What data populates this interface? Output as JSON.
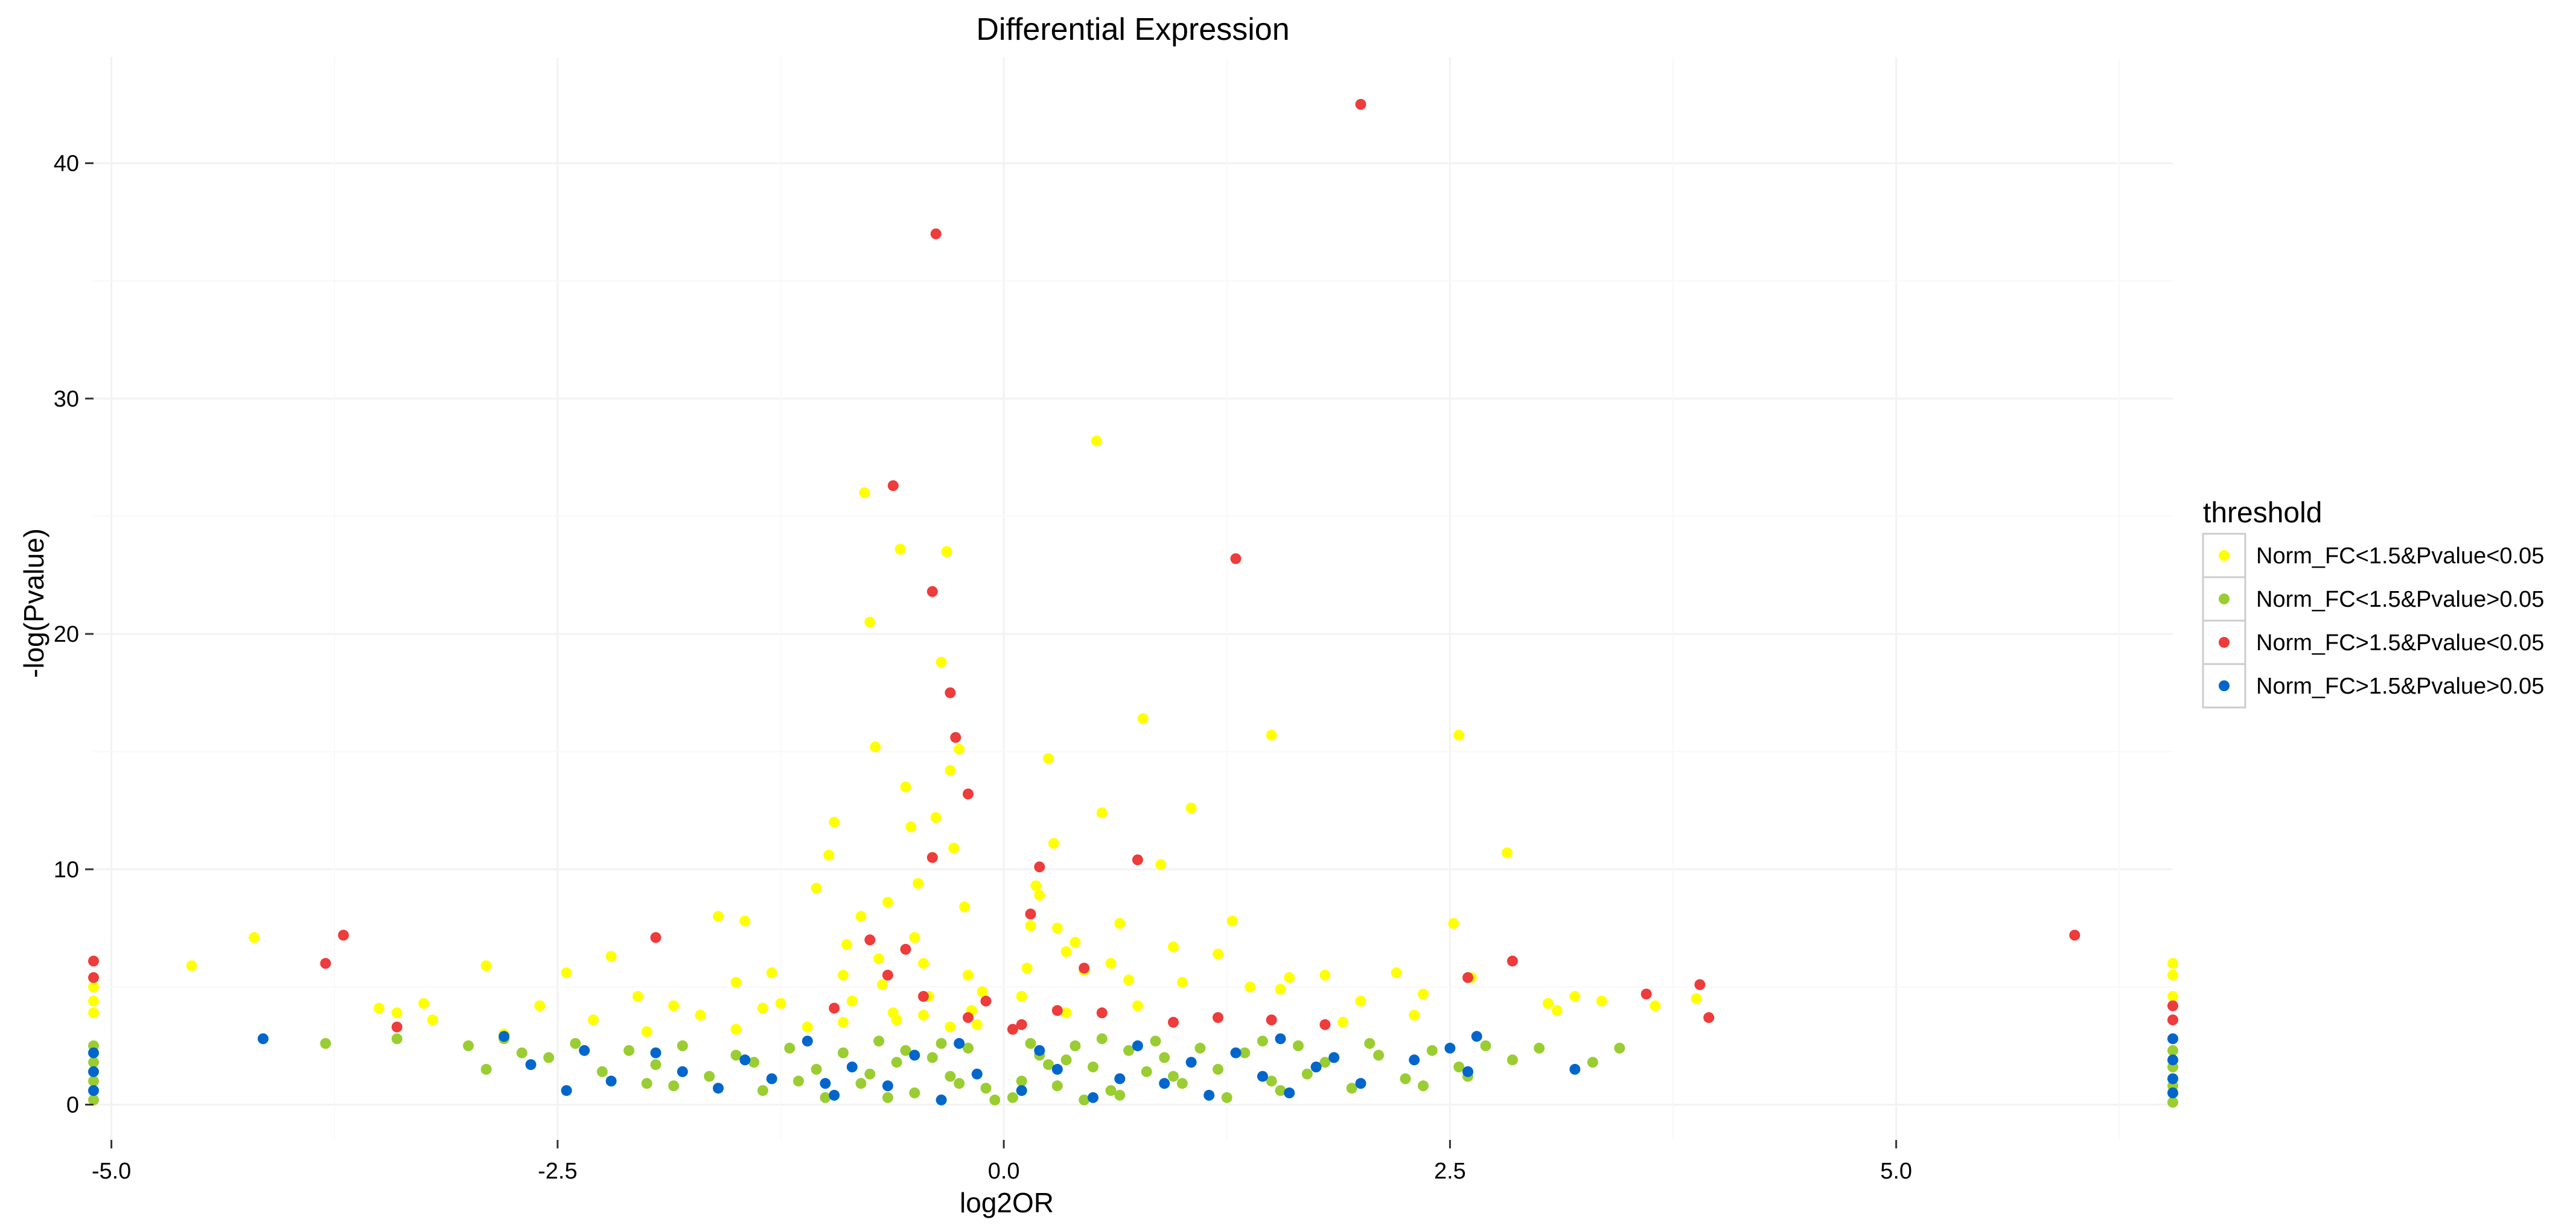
{
  "chart_data": {
    "type": "scatter",
    "title": "Differential Expression",
    "xlabel": "log2OR",
    "ylabel": "-log(Pvalue)",
    "xlim": [
      -5.1,
      6.55
    ],
    "ylim": [
      -1.5,
      44.5
    ],
    "x_ticks": [
      -5.0,
      -2.5,
      0.0,
      2.5,
      5.0
    ],
    "x_tick_labels": [
      "-5.0",
      "-2.5",
      "0.0",
      "2.5",
      "5.0"
    ],
    "y_ticks": [
      0,
      10,
      20,
      30,
      40
    ],
    "y_tick_labels": [
      "0",
      "10",
      "20",
      "30",
      "40"
    ],
    "grid": true,
    "legend": {
      "title": "threshold",
      "placement": "right",
      "entries": [
        {
          "label": "Norm_FC<1.5&Pvalue<0.05",
          "color": "#FFFF00"
        },
        {
          "label": "Norm_FC<1.5&Pvalue>0.05",
          "color": "#9ACD32"
        },
        {
          "label": "Norm_FC>1.5&Pvalue<0.05",
          "color": "#EE3B3B"
        },
        {
          "label": "Norm_FC>1.5&Pvalue>0.05",
          "color": "#0066CC"
        }
      ]
    },
    "series": [
      {
        "name": "Norm_FC<1.5&Pvalue<0.05",
        "color": "#FFFF00",
        "points": [
          [
            -4.55,
            5.9
          ],
          [
            -4.2,
            7.1
          ],
          [
            -3.5,
            4.1
          ],
          [
            -3.4,
            3.9
          ],
          [
            -3.25,
            4.3
          ],
          [
            -3.2,
            3.6
          ],
          [
            -2.9,
            5.9
          ],
          [
            -2.6,
            4.2
          ],
          [
            -2.45,
            5.6
          ],
          [
            -2.2,
            6.3
          ],
          [
            -2.05,
            4.6
          ],
          [
            -1.85,
            4.2
          ],
          [
            -1.6,
            8.0
          ],
          [
            -1.5,
            5.2
          ],
          [
            -1.45,
            7.8
          ],
          [
            -1.35,
            4.1
          ],
          [
            -1.3,
            5.6
          ],
          [
            -1.25,
            4.3
          ],
          [
            -1.05,
            9.2
          ],
          [
            -0.98,
            10.6
          ],
          [
            -0.95,
            12.0
          ],
          [
            -0.9,
            5.5
          ],
          [
            -0.88,
            6.8
          ],
          [
            -0.85,
            4.4
          ],
          [
            -0.8,
            8.0
          ],
          [
            -0.78,
            26.0
          ],
          [
            -0.75,
            20.5
          ],
          [
            -0.72,
            15.2
          ],
          [
            -0.7,
            6.2
          ],
          [
            -0.68,
            5.1
          ],
          [
            -0.65,
            8.6
          ],
          [
            -0.62,
            3.9
          ],
          [
            -0.58,
            23.6
          ],
          [
            -0.55,
            13.5
          ],
          [
            -0.52,
            11.8
          ],
          [
            -0.5,
            7.1
          ],
          [
            -0.48,
            9.4
          ],
          [
            -0.45,
            6.0
          ],
          [
            -0.42,
            4.6
          ],
          [
            -0.4,
            10.5
          ],
          [
            -0.38,
            12.2
          ],
          [
            -0.35,
            18.8
          ],
          [
            -0.32,
            23.5
          ],
          [
            -0.3,
            14.2
          ],
          [
            -0.28,
            10.9
          ],
          [
            -0.25,
            15.1
          ],
          [
            -0.22,
            8.4
          ],
          [
            -0.2,
            5.5
          ],
          [
            -0.18,
            4.0
          ],
          [
            -0.15,
            3.4
          ],
          [
            -0.12,
            4.8
          ],
          [
            -0.9,
            3.5
          ],
          [
            -1.1,
            3.3
          ],
          [
            -0.6,
            3.6
          ],
          [
            -0.3,
            3.3
          ],
          [
            0.1,
            4.6
          ],
          [
            0.13,
            5.8
          ],
          [
            0.15,
            7.6
          ],
          [
            0.18,
            9.3
          ],
          [
            0.2,
            8.9
          ],
          [
            0.25,
            14.7
          ],
          [
            0.28,
            11.1
          ],
          [
            0.3,
            7.5
          ],
          [
            0.35,
            6.5
          ],
          [
            0.4,
            6.9
          ],
          [
            0.45,
            5.7
          ],
          [
            0.52,
            28.2
          ],
          [
            0.55,
            12.4
          ],
          [
            0.6,
            6.0
          ],
          [
            0.65,
            7.7
          ],
          [
            0.7,
            5.3
          ],
          [
            0.78,
            16.4
          ],
          [
            0.88,
            10.2
          ],
          [
            0.95,
            6.7
          ],
          [
            1.05,
            12.6
          ],
          [
            1.2,
            6.4
          ],
          [
            1.28,
            7.8
          ],
          [
            1.38,
            5.0
          ],
          [
            1.5,
            15.7
          ],
          [
            1.6,
            5.4
          ],
          [
            1.8,
            5.5
          ],
          [
            2.0,
            4.4
          ],
          [
            2.2,
            5.6
          ],
          [
            2.35,
            4.7
          ],
          [
            2.52,
            7.7
          ],
          [
            2.55,
            15.7
          ],
          [
            2.62,
            5.4
          ],
          [
            2.82,
            10.7
          ],
          [
            3.05,
            4.3
          ],
          [
            3.2,
            4.6
          ],
          [
            3.35,
            4.4
          ],
          [
            3.65,
            4.2
          ],
          [
            3.88,
            4.5
          ],
          [
            3.1,
            4.0
          ],
          [
            1.55,
            4.9
          ],
          [
            1.0,
            5.2
          ],
          [
            -1.5,
            3.2
          ],
          [
            -2.0,
            3.1
          ],
          [
            -2.8,
            3.0
          ],
          [
            -0.45,
            3.8
          ],
          [
            0.35,
            3.9
          ],
          [
            0.75,
            4.2
          ],
          [
            -5.1,
            5.0
          ],
          [
            -5.1,
            4.4
          ],
          [
            -5.1,
            3.9
          ],
          [
            6.55,
            5.5
          ],
          [
            6.55,
            4.6
          ],
          [
            6.55,
            6.0
          ],
          [
            -1.7,
            3.8
          ],
          [
            -2.3,
            3.6
          ],
          [
            1.9,
            3.5
          ],
          [
            2.3,
            3.8
          ]
        ]
      },
      {
        "name": "Norm_FC<1.5&Pvalue>0.05",
        "color": "#9ACD32",
        "points": [
          [
            -3.8,
            2.6
          ],
          [
            -3.4,
            2.8
          ],
          [
            -3.0,
            2.5
          ],
          [
            -2.8,
            2.8
          ],
          [
            -2.7,
            2.2
          ],
          [
            -2.55,
            2.0
          ],
          [
            -2.4,
            2.6
          ],
          [
            -2.25,
            1.4
          ],
          [
            -2.1,
            2.3
          ],
          [
            -1.95,
            1.7
          ],
          [
            -1.8,
            2.5
          ],
          [
            -1.65,
            1.2
          ],
          [
            -1.5,
            2.1
          ],
          [
            -1.35,
            0.6
          ],
          [
            -1.2,
            2.4
          ],
          [
            -1.05,
            1.5
          ],
          [
            -0.9,
            2.2
          ],
          [
            -0.8,
            0.9
          ],
          [
            -0.7,
            2.7
          ],
          [
            -0.6,
            1.8
          ],
          [
            -0.5,
            0.5
          ],
          [
            -0.4,
            2.0
          ],
          [
            -0.3,
            1.2
          ],
          [
            -0.2,
            2.4
          ],
          [
            -0.1,
            0.7
          ],
          [
            -0.05,
            0.2
          ],
          [
            0.05,
            0.3
          ],
          [
            0.1,
            1.0
          ],
          [
            0.2,
            2.1
          ],
          [
            0.3,
            0.8
          ],
          [
            0.4,
            2.5
          ],
          [
            0.5,
            1.6
          ],
          [
            0.6,
            0.6
          ],
          [
            0.7,
            2.3
          ],
          [
            0.8,
            1.4
          ],
          [
            0.9,
            2.0
          ],
          [
            1.0,
            0.9
          ],
          [
            1.1,
            2.4
          ],
          [
            1.2,
            1.5
          ],
          [
            1.35,
            2.2
          ],
          [
            1.5,
            1.0
          ],
          [
            1.65,
            2.5
          ],
          [
            1.8,
            1.8
          ],
          [
            1.95,
            0.7
          ],
          [
            2.1,
            2.1
          ],
          [
            2.25,
            1.1
          ],
          [
            2.4,
            2.3
          ],
          [
            2.55,
            1.6
          ],
          [
            2.7,
            2.5
          ],
          [
            2.85,
            1.9
          ],
          [
            3.0,
            2.4
          ],
          [
            3.3,
            1.8
          ],
          [
            3.45,
            2.4
          ],
          [
            -1.0,
            0.3
          ],
          [
            -0.75,
            1.3
          ],
          [
            -0.35,
            2.6
          ],
          [
            0.25,
            1.7
          ],
          [
            0.65,
            0.4
          ],
          [
            1.25,
            0.3
          ],
          [
            1.7,
            1.3
          ],
          [
            2.05,
            2.6
          ],
          [
            -2.0,
            0.9
          ],
          [
            -2.9,
            1.5
          ],
          [
            -1.4,
            1.8
          ],
          [
            -0.55,
            2.3
          ],
          [
            0.45,
            0.2
          ],
          [
            0.95,
            1.2
          ],
          [
            1.45,
            2.7
          ],
          [
            2.35,
            0.8
          ],
          [
            -5.1,
            2.5
          ],
          [
            -5.1,
            1.8
          ],
          [
            -5.1,
            1.0
          ],
          [
            -5.1,
            0.2
          ],
          [
            6.55,
            2.3
          ],
          [
            6.55,
            1.6
          ],
          [
            6.55,
            0.8
          ],
          [
            6.55,
            0.1
          ],
          [
            -1.15,
            1.0
          ],
          [
            0.15,
            2.6
          ],
          [
            0.55,
            2.8
          ],
          [
            -0.25,
            0.9
          ],
          [
            0.85,
            2.7
          ],
          [
            1.55,
            0.6
          ],
          [
            2.6,
            1.2
          ],
          [
            -1.85,
            0.8
          ],
          [
            -0.65,
            0.3
          ],
          [
            0.35,
            1.9
          ]
        ]
      },
      {
        "name": "Norm_FC>1.5&Pvalue<0.05",
        "color": "#EE3B3B",
        "points": [
          [
            2.0,
            42.5
          ],
          [
            -0.38,
            37.0
          ],
          [
            -0.62,
            26.3
          ],
          [
            1.3,
            23.2
          ],
          [
            -0.4,
            21.8
          ],
          [
            -0.3,
            17.5
          ],
          [
            -0.27,
            15.6
          ],
          [
            -0.2,
            13.2
          ],
          [
            0.75,
            10.4
          ],
          [
            -0.4,
            10.5
          ],
          [
            0.2,
            10.1
          ],
          [
            0.15,
            8.1
          ],
          [
            -3.7,
            7.2
          ],
          [
            -3.8,
            6.0
          ],
          [
            -1.95,
            7.1
          ],
          [
            -0.75,
            7.0
          ],
          [
            6.0,
            7.2
          ],
          [
            2.85,
            6.1
          ],
          [
            2.6,
            5.4
          ],
          [
            3.9,
            5.1
          ],
          [
            3.6,
            4.7
          ],
          [
            3.95,
            3.7
          ],
          [
            -3.4,
            3.3
          ],
          [
            -0.95,
            4.1
          ],
          [
            -0.65,
            5.5
          ],
          [
            -0.45,
            4.6
          ],
          [
            -0.2,
            3.7
          ],
          [
            0.1,
            3.4
          ],
          [
            0.3,
            4.0
          ],
          [
            0.55,
            3.9
          ],
          [
            0.95,
            3.5
          ],
          [
            1.2,
            3.7
          ],
          [
            1.5,
            3.6
          ],
          [
            1.8,
            3.4
          ],
          [
            0.45,
            5.8
          ],
          [
            -0.55,
            6.6
          ],
          [
            -5.1,
            6.1
          ],
          [
            -5.1,
            5.4
          ],
          [
            6.55,
            4.2
          ],
          [
            6.55,
            3.6
          ],
          [
            -0.1,
            4.4
          ],
          [
            0.05,
            3.2
          ]
        ]
      },
      {
        "name": "Norm_FC>1.5&Pvalue>0.05",
        "color": "#0066CC",
        "points": [
          [
            -4.15,
            2.8
          ],
          [
            -2.8,
            2.9
          ],
          [
            -2.65,
            1.7
          ],
          [
            -2.35,
            2.3
          ],
          [
            -2.2,
            1.0
          ],
          [
            -1.95,
            2.2
          ],
          [
            -1.8,
            1.4
          ],
          [
            -1.6,
            0.7
          ],
          [
            -1.45,
            1.9
          ],
          [
            -1.3,
            1.1
          ],
          [
            -1.1,
            2.7
          ],
          [
            -0.95,
            0.4
          ],
          [
            -0.85,
            1.6
          ],
          [
            -0.65,
            0.8
          ],
          [
            -0.5,
            2.1
          ],
          [
            -0.35,
            0.2
          ],
          [
            -0.15,
            1.3
          ],
          [
            0.1,
            0.6
          ],
          [
            0.3,
            1.5
          ],
          [
            0.5,
            0.3
          ],
          [
            0.75,
            2.5
          ],
          [
            0.9,
            0.9
          ],
          [
            1.05,
            1.8
          ],
          [
            1.15,
            0.4
          ],
          [
            1.3,
            2.2
          ],
          [
            1.45,
            1.2
          ],
          [
            1.6,
            0.5
          ],
          [
            1.85,
            2.0
          ],
          [
            2.0,
            0.9
          ],
          [
            2.3,
            1.9
          ],
          [
            2.5,
            2.4
          ],
          [
            2.6,
            1.4
          ],
          [
            2.65,
            2.9
          ],
          [
            3.2,
            1.5
          ],
          [
            -2.45,
            0.6
          ],
          [
            -1.0,
            0.9
          ],
          [
            0.65,
            1.1
          ],
          [
            1.75,
            1.6
          ],
          [
            -5.1,
            2.2
          ],
          [
            -5.1,
            1.4
          ],
          [
            -5.1,
            0.6
          ],
          [
            6.55,
            2.8
          ],
          [
            6.55,
            1.9
          ],
          [
            6.55,
            1.1
          ],
          [
            6.55,
            0.5
          ],
          [
            -0.25,
            2.6
          ],
          [
            0.2,
            2.3
          ],
          [
            1.55,
            2.8
          ]
        ]
      }
    ]
  }
}
